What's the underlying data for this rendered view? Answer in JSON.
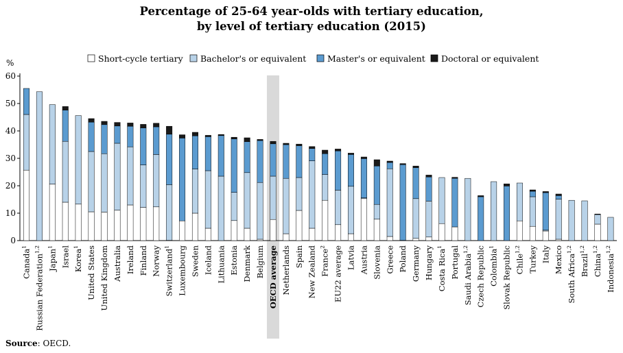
{
  "chart_data": {
    "type": "bar",
    "stacked": true,
    "title_line1": "Percentage of 25-64 year-olds with tertiary education,",
    "title_line2": "by level of tertiary education (2015)",
    "ylabel": "%",
    "ylim": [
      0,
      60
    ],
    "yticks": [
      0,
      10,
      20,
      30,
      40,
      50,
      60
    ],
    "grid": false,
    "legend_position": "top",
    "highlight_category": "OECD average",
    "series": [
      {
        "name": "Short-cycle tertiary",
        "color": "#ffffff",
        "values": [
          25.7,
          0,
          20.6,
          14,
          13.3,
          10.5,
          10.4,
          11.1,
          13,
          12.1,
          12.3,
          0.1,
          7.2,
          10,
          4.5,
          0,
          7.3,
          4.5,
          0.5,
          7.7,
          2.5,
          11,
          4.5,
          14.7,
          5.8,
          2.5,
          15.3,
          7.8,
          1.5,
          0,
          0.8,
          1.3,
          6.2,
          5,
          0,
          0,
          0,
          0,
          7.2,
          5.2,
          3.5,
          0.5,
          0,
          0,
          6,
          0
        ]
      },
      {
        "name": "Bachelor's or equivalent",
        "color": "#b8d2e8",
        "values": [
          20.3,
          54.3,
          29,
          22.2,
          32.3,
          22,
          21.3,
          24.4,
          21.2,
          15.5,
          19.1,
          20.3,
          0,
          16.1,
          21,
          23.5,
          10.3,
          20.3,
          20.7,
          15.8,
          20.2,
          12,
          24.6,
          9.4,
          12.6,
          17.3,
          0.3,
          5.4,
          24.7,
          0.1,
          14.5,
          13.1,
          16.8,
          0,
          22.7,
          0,
          21.5,
          0,
          13.8,
          10.8,
          0.3,
          14.6,
          14.7,
          14.5,
          3.5,
          8.5
        ]
      },
      {
        "name": "Master's or equivalent",
        "color": "#5b9bd0",
        "values": [
          9.5,
          0,
          0,
          11.4,
          0,
          10.7,
          10.6,
          6.3,
          7.5,
          13.5,
          10.1,
          18.4,
          30.2,
          12.1,
          12.4,
          14.8,
          19.5,
          11.3,
          15.3,
          11.8,
          12.3,
          11.6,
          4.5,
          7.6,
          14.3,
          11.6,
          14.3,
          14,
          2.3,
          27.6,
          11.3,
          8.8,
          0,
          17.7,
          0,
          16,
          0,
          19.9,
          0,
          2,
          13.7,
          1.3,
          0,
          0,
          0.1,
          0
        ]
      },
      {
        "name": "Doctoral or equivalent",
        "color": "#1a1a1a",
        "values": [
          0,
          0,
          0,
          1.3,
          0,
          1.3,
          1.2,
          1.3,
          1.2,
          1.3,
          1.3,
          2.9,
          1.2,
          1.3,
          0.5,
          0.4,
          0.6,
          1.4,
          0.4,
          0.9,
          0.5,
          0.6,
          0.7,
          1.3,
          0.7,
          0.5,
          0.6,
          2.3,
          0.5,
          0.4,
          0.6,
          0.7,
          0,
          0.4,
          0,
          0.4,
          0,
          0.8,
          0,
          0.5,
          0.4,
          0.6,
          0,
          0,
          0.1,
          0
        ]
      }
    ],
    "categories": [
      {
        "label": "Canada",
        "sup": "1"
      },
      {
        "label": "Russian Federation",
        "sup": "1,2"
      },
      {
        "label": "Japan",
        "sup": "1"
      },
      {
        "label": "Israel",
        "sup": ""
      },
      {
        "label": "Korea",
        "sup": "1"
      },
      {
        "label": "United States",
        "sup": ""
      },
      {
        "label": "United Kingdom",
        "sup": ""
      },
      {
        "label": "Australia",
        "sup": ""
      },
      {
        "label": "Ireland",
        "sup": ""
      },
      {
        "label": "Finland",
        "sup": ""
      },
      {
        "label": "Norway",
        "sup": ""
      },
      {
        "label": "Switzerland",
        "sup": "1"
      },
      {
        "label": "Luxembourg",
        "sup": ""
      },
      {
        "label": "Sweden",
        "sup": ""
      },
      {
        "label": "Iceland",
        "sup": ""
      },
      {
        "label": "Lithuania",
        "sup": ""
      },
      {
        "label": "Estonia",
        "sup": ""
      },
      {
        "label": "Denmark",
        "sup": ""
      },
      {
        "label": "Belgium",
        "sup": ""
      },
      {
        "label": "OECD average",
        "sup": ""
      },
      {
        "label": "Netherlands",
        "sup": ""
      },
      {
        "label": "Spain",
        "sup": ""
      },
      {
        "label": "New Zealand",
        "sup": ""
      },
      {
        "label": "France",
        "sup": "2"
      },
      {
        "label": "EU22 average",
        "sup": ""
      },
      {
        "label": "Latvia",
        "sup": ""
      },
      {
        "label": "Austria",
        "sup": ""
      },
      {
        "label": "Slovenia",
        "sup": ""
      },
      {
        "label": "Greece",
        "sup": ""
      },
      {
        "label": "Poland",
        "sup": ""
      },
      {
        "label": "Germany",
        "sup": ""
      },
      {
        "label": "Hungary",
        "sup": ""
      },
      {
        "label": "Costa Rica",
        "sup": "1"
      },
      {
        "label": "Portugal",
        "sup": ""
      },
      {
        "label": "Saudi Arabia",
        "sup": "1,2"
      },
      {
        "label": "Czech Republic",
        "sup": ""
      },
      {
        "label": "Colombia",
        "sup": "1"
      },
      {
        "label": "Slovak Republic",
        "sup": ""
      },
      {
        "label": "Chile",
        "sup": "1,2"
      },
      {
        "label": "Turkey",
        "sup": ""
      },
      {
        "label": "Italy",
        "sup": ""
      },
      {
        "label": "Mexico",
        "sup": ""
      },
      {
        "label": "South Africa",
        "sup": "1,2"
      },
      {
        "label": "Brazil",
        "sup": "1,2"
      },
      {
        "label": "China",
        "sup": "1,2"
      },
      {
        "label": "Indonesia",
        "sup": "1,2"
      }
    ]
  },
  "source": {
    "label": "Source",
    "text": ": OECD."
  }
}
